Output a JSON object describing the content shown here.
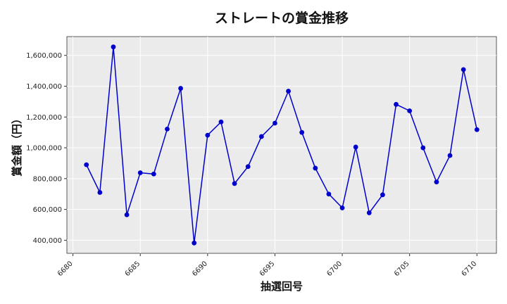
{
  "chart_data": {
    "type": "line",
    "title": "ストレートの賞金推移",
    "xlabel": "抽選回号",
    "ylabel": "賞金額（円）",
    "x": [
      6681,
      6682,
      6683,
      6684,
      6685,
      6686,
      6687,
      6688,
      6689,
      6690,
      6691,
      6692,
      6693,
      6694,
      6695,
      6696,
      6697,
      6698,
      6699,
      6700,
      6701,
      6702,
      6703,
      6704,
      6705,
      6706,
      6707,
      6708,
      6709,
      6710
    ],
    "series": [
      {
        "values": [
          890000,
          710000,
          1655000,
          565000,
          838000,
          830000,
          1122000,
          1386000,
          382000,
          1082000,
          1168000,
          768000,
          878000,
          1073000,
          1160000,
          1368000,
          1100000,
          868000,
          700000,
          610000,
          1005000,
          578000,
          695000,
          1282000,
          1240000,
          1000000,
          778000,
          950000,
          1508000,
          1118000
        ],
        "color": "#0000cc"
      }
    ],
    "xlim": [
      6679.55,
      6711.45
    ],
    "ylim": [
      315000,
      1722000
    ],
    "xticks": [
      6680,
      6685,
      6690,
      6695,
      6700,
      6705,
      6710
    ],
    "xtick_labels": [
      "6680",
      "6685",
      "6690",
      "6695",
      "6700",
      "6705",
      "6710"
    ],
    "yticks": [
      400000,
      600000,
      800000,
      1000000,
      1200000,
      1400000,
      1600000
    ],
    "ytick_labels": [
      "400,000",
      "600,000",
      "800,000",
      "1,000,000",
      "1,200,000",
      "1,400,000",
      "1,600,000"
    ],
    "grid": true,
    "background": "#ebebeb"
  }
}
